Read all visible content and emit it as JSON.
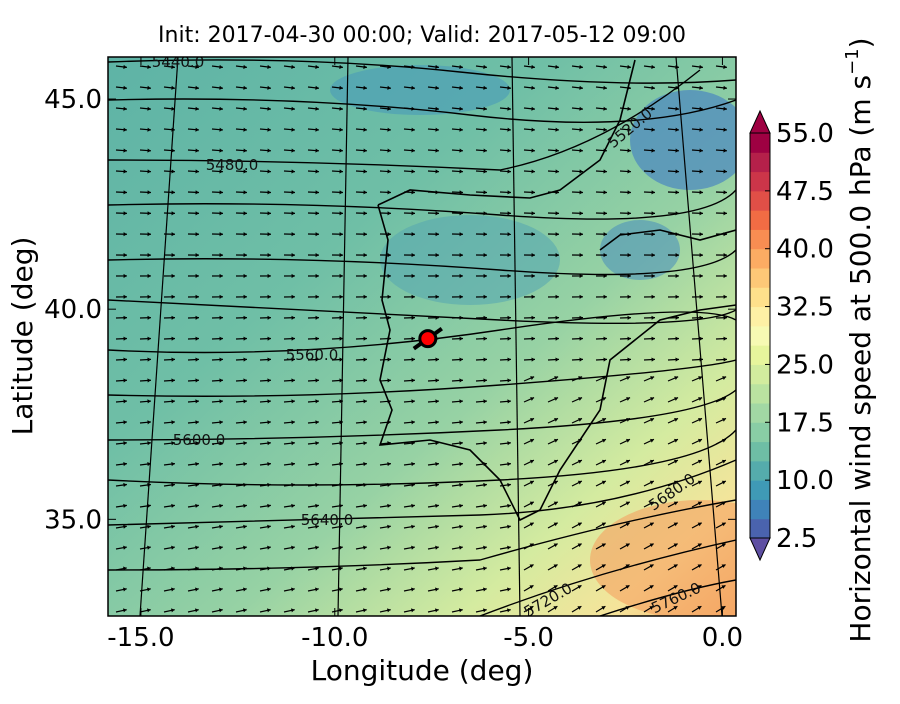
{
  "chart_data": {
    "type": "contour",
    "title": "Init: 2017-04-30 00:00; Valid: 2017-05-12 09:00",
    "x_label": "Longitude (deg)",
    "y_label": "Latitude (deg)",
    "xlim": [
      -15.85,
      0.35
    ],
    "ylim": [
      32.7,
      46.0
    ],
    "xticks": [
      {
        "value": -15,
        "label": "-15.0"
      },
      {
        "value": -10,
        "label": "-10.0"
      },
      {
        "value": -5,
        "label": "-5.0"
      },
      {
        "value": 0,
        "label": "0.0"
      }
    ],
    "yticks": [
      {
        "value": 35,
        "label": "35.0"
      },
      {
        "value": 40,
        "label": "40.0"
      },
      {
        "value": 45,
        "label": "45.0"
      }
    ],
    "contour_labels": [
      "5440.0",
      "5480.0",
      "5520.0",
      "5560.0",
      "5600.0",
      "5640.0",
      "5680.0",
      "5720.0",
      "5760.0"
    ],
    "marker": {
      "x": -7.6,
      "y": 39.3,
      "color": "#ff0000"
    },
    "colorbar": {
      "label": [
        "Horizontal wind speed at 500.0 hPa (m s",
        "−1",
        ")"
      ],
      "lim": [
        2.5,
        55.0
      ],
      "ticks": [
        {
          "value": 2.5,
          "label": "2.5"
        },
        {
          "value": 10,
          "label": "10.0"
        },
        {
          "value": 17.5,
          "label": "17.5"
        },
        {
          "value": 25,
          "label": "25.0"
        },
        {
          "value": 32.5,
          "label": "32.5"
        },
        {
          "value": 40,
          "label": "40.0"
        },
        {
          "value": 47.5,
          "label": "47.5"
        },
        {
          "value": 55,
          "label": "55.0"
        }
      ],
      "colors": [
        "#4a63ae",
        "#3f83b9",
        "#3f9ab6",
        "#55acac",
        "#6ebea5",
        "#89cda5",
        "#a2d8a4",
        "#bae3a0",
        "#d2ec9e",
        "#e7f59c",
        "#f7fab3",
        "#fdf0a5",
        "#fee08b",
        "#fdc877",
        "#fcac63",
        "#f88d52",
        "#f16c44",
        "#e04f47",
        "#cc3549",
        "#b5204a",
        "#9e0142"
      ],
      "under_color": "#5e4fa2",
      "over_color": "#9e0142"
    }
  }
}
